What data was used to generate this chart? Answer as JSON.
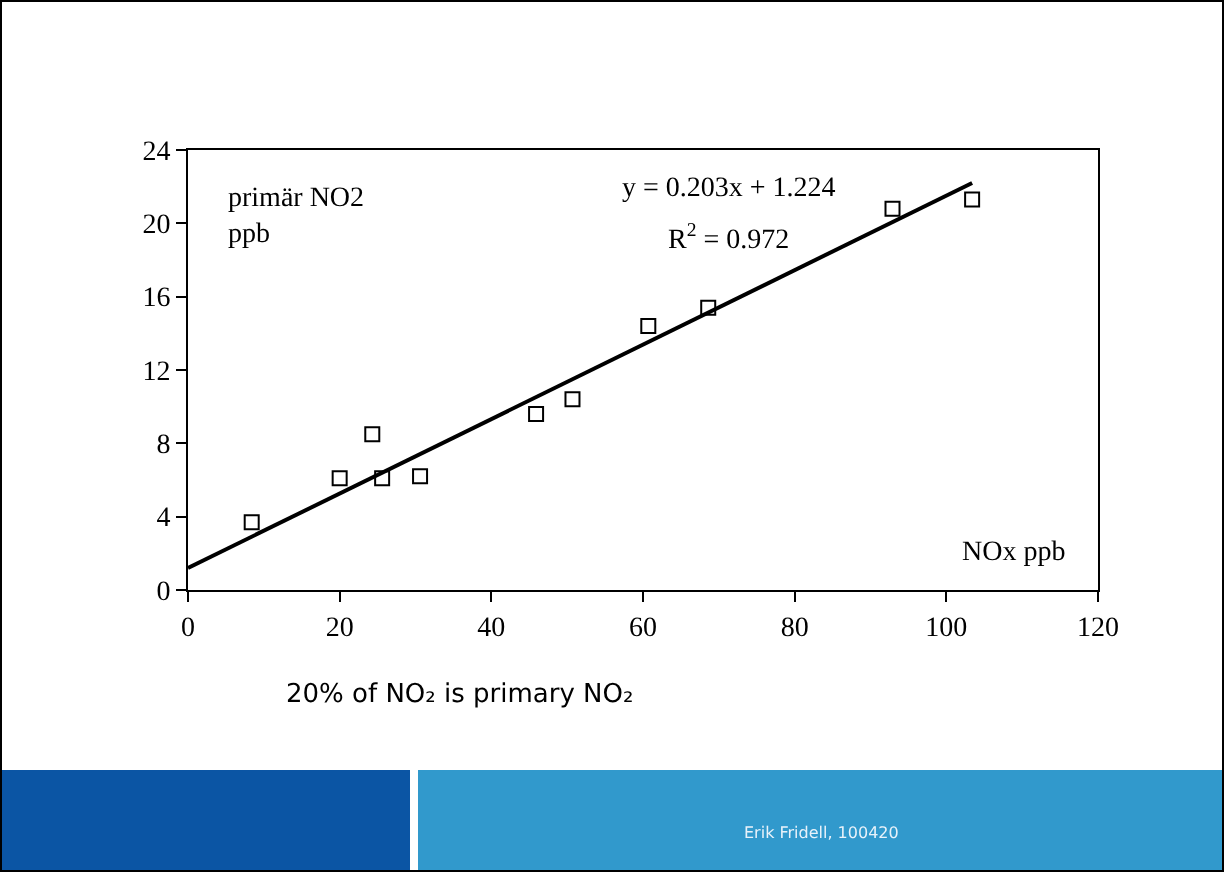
{
  "chart_data": {
    "type": "scatter",
    "xlabel": "NOx ppb",
    "ylabel": "primär NO2\nppb",
    "annotations": [
      "y = 0.203x + 1.224",
      "R$^{2}$ = 0.972",
      "20% of NO₂ is primary NO₂",
      "Erik Fridell, 100420"
    ],
    "series": [
      {
        "type": "scatter",
        "marker": "square",
        "color": "#000000",
        "x": [
          8.4,
          20.0,
          24.3,
          25.6,
          30.6,
          45.9,
          50.7,
          60.7,
          68.6,
          92.9,
          103.4
        ],
        "values": [
          3.7,
          6.1,
          8.5,
          6.1,
          6.2,
          9.6,
          10.4,
          14.4,
          15.4,
          20.8,
          21.3
        ]
      },
      {
        "type": "line",
        "marker": "none",
        "color": "#000000",
        "x": [
          0,
          103.4
        ],
        "values": [
          1.2,
          22.2
        ]
      }
    ],
    "xlim": [
      0,
      120
    ],
    "xticks": [
      0,
      20,
      40,
      60,
      80,
      100,
      120
    ],
    "ylim": [
      0,
      24
    ],
    "yticks": [
      0,
      4,
      8,
      12,
      16,
      20,
      24
    ],
    "grid": false
  }
}
